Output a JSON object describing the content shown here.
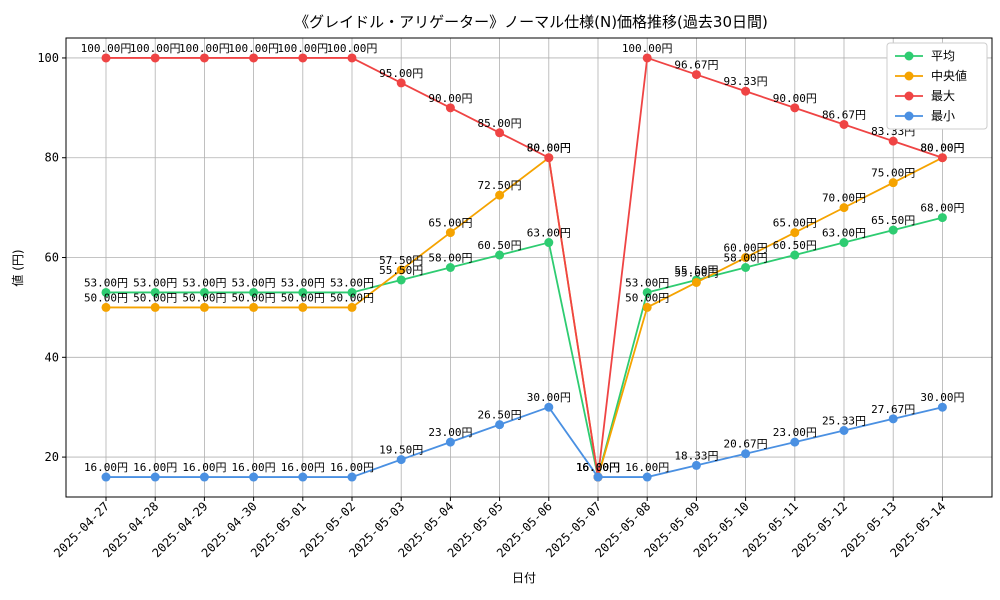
{
  "chart_data": {
    "type": "line",
    "title": "《グレイドル・アリゲーター》ノーマル仕様(N)価格推移(過去30日間)",
    "xlabel": "日付",
    "ylabel": "値 (円)",
    "value_suffix": "円",
    "categories": [
      "2025-04-27",
      "2025-04-28",
      "2025-04-29",
      "2025-04-30",
      "2025-05-01",
      "2025-05-02",
      "2025-05-03",
      "2025-05-04",
      "2025-05-05",
      "2025-05-06",
      "2025-05-07",
      "2025-05-08",
      "2025-05-09",
      "2025-05-10",
      "2025-05-11",
      "2025-05-12",
      "2025-05-13",
      "2025-05-14"
    ],
    "ylim": [
      12,
      104
    ],
    "yticks": [
      20,
      40,
      60,
      80,
      100
    ],
    "grid": true,
    "legend_position": "top-right",
    "series": [
      {
        "name": "平均",
        "color": "#2ecc71",
        "label_offset": -6,
        "values": [
          53.0,
          53.0,
          53.0,
          53.0,
          53.0,
          53.0,
          55.5,
          58.0,
          60.5,
          63.0,
          16.0,
          53.0,
          55.5,
          58.0,
          60.5,
          63.0,
          65.5,
          68.0
        ]
      },
      {
        "name": "中央値",
        "color": "#f5a300",
        "label_offset": -6,
        "values": [
          50.0,
          50.0,
          50.0,
          50.0,
          50.0,
          50.0,
          57.5,
          65.0,
          72.5,
          80.0,
          16.0,
          50.0,
          55.0,
          60.0,
          65.0,
          70.0,
          75.0,
          80.0
        ]
      },
      {
        "name": "最大",
        "color": "#ef4444",
        "label_offset": -6,
        "values": [
          100.0,
          100.0,
          100.0,
          100.0,
          100.0,
          100.0,
          95.0,
          90.0,
          85.0,
          80.0,
          16.0,
          100.0,
          96.67,
          93.33,
          90.0,
          86.67,
          83.33,
          80.0
        ]
      },
      {
        "name": "最小",
        "color": "#4a90e2",
        "label_offset": -6,
        "values": [
          16.0,
          16.0,
          16.0,
          16.0,
          16.0,
          16.0,
          19.5,
          23.0,
          26.5,
          30.0,
          16.0,
          16.0,
          18.33,
          20.67,
          23.0,
          25.33,
          27.67,
          30.0
        ]
      }
    ]
  }
}
